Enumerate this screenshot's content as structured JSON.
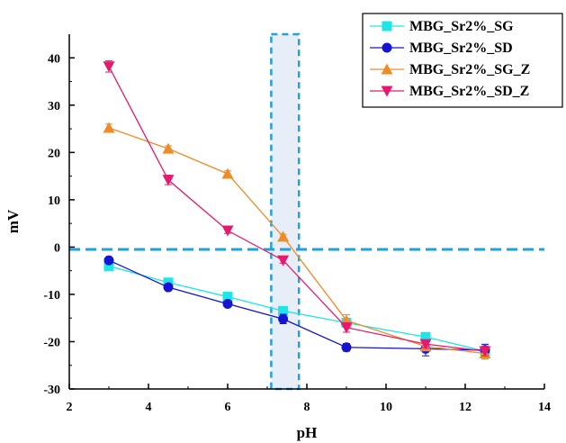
{
  "chart_data": {
    "type": "line",
    "xlabel": "pH",
    "ylabel": "mV",
    "xlim": [
      2,
      14
    ],
    "ylim": [
      -30,
      45
    ],
    "x_ticks": [
      2,
      4,
      6,
      8,
      10,
      12,
      14
    ],
    "y_ticks": [
      -30,
      -20,
      -10,
      0,
      10,
      20,
      30,
      40
    ],
    "grid": false,
    "legend_position": "top-right",
    "reference_line_y": -0.5,
    "highlight_band_x": [
      7.1,
      7.8
    ],
    "series": [
      {
        "name": "MBG_Sr2%_SG",
        "color": "#1ee6e6",
        "marker": "square",
        "x": [
          3,
          4.5,
          6,
          7.4,
          9,
          11,
          12.5
        ],
        "y": [
          -4,
          -7.5,
          -10.5,
          -13.5,
          -16,
          -19,
          -22
        ],
        "err": [
          0.5,
          0.5,
          0.5,
          0.5,
          0.8,
          0.8,
          1.5
        ]
      },
      {
        "name": "MBG_Sr2%_SD",
        "color": "#1414d2",
        "marker": "circle",
        "x": [
          3,
          4.5,
          6,
          7.4,
          9,
          11,
          12.5
        ],
        "y": [
          -2.8,
          -8.5,
          -12,
          -15.2,
          -21.2,
          -21.5,
          -21.8
        ],
        "err": [
          0.5,
          0.5,
          0.5,
          1.0,
          0.8,
          1.5,
          1.2
        ]
      },
      {
        "name": "MBG_Sr2%_SG_Z",
        "color": "#f08c28",
        "marker": "triangle-up",
        "x": [
          3,
          4.5,
          6,
          7.4,
          9,
          11,
          12.5
        ],
        "y": [
          25.2,
          20.8,
          15.5,
          2.2,
          -15.5,
          -21,
          -22.5
        ],
        "err": [
          0.8,
          0.6,
          0.6,
          0.5,
          1.2,
          0.8,
          1.2
        ]
      },
      {
        "name": "MBG_Sr2%_SD_Z",
        "color": "#e6196e",
        "marker": "triangle-down",
        "x": [
          3,
          4.5,
          6,
          7.4,
          9,
          11,
          12.5
        ],
        "y": [
          38.2,
          14.2,
          3.5,
          -2.8,
          -17,
          -20.5,
          -22
        ],
        "err": [
          1.2,
          1.0,
          0.6,
          0.6,
          1.0,
          0.8,
          1.0
        ]
      }
    ]
  }
}
